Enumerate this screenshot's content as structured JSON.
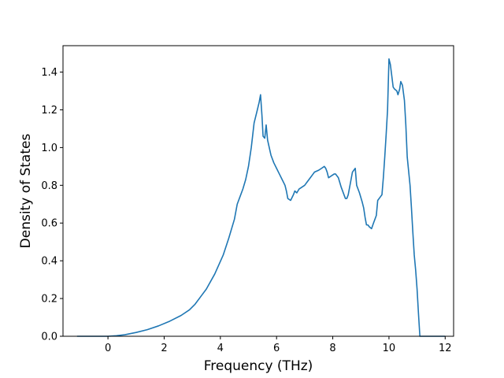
{
  "chart_data": {
    "type": "line",
    "title": "",
    "xlabel": "Frequency (THz)",
    "ylabel": "Density of States",
    "xlim": [
      -1.6,
      12.3
    ],
    "ylim": [
      0.0,
      1.54
    ],
    "x_ticks": [
      0,
      2,
      4,
      6,
      8,
      10,
      12
    ],
    "y_ticks": [
      0.0,
      0.2,
      0.4,
      0.6,
      0.8,
      1.0,
      1.2,
      1.4
    ],
    "grid": false,
    "line_color": "#1f77b4",
    "series": [
      {
        "points": [
          [
            -1.1,
            0.0
          ],
          [
            -0.5,
            0.0
          ],
          [
            0.0,
            0.0
          ],
          [
            0.3,
            0.003
          ],
          [
            0.6,
            0.008
          ],
          [
            1.0,
            0.02
          ],
          [
            1.4,
            0.035
          ],
          [
            1.8,
            0.055
          ],
          [
            2.2,
            0.08
          ],
          [
            2.6,
            0.11
          ],
          [
            2.9,
            0.14
          ],
          [
            3.1,
            0.17
          ],
          [
            3.3,
            0.21
          ],
          [
            3.5,
            0.25
          ],
          [
            3.8,
            0.33
          ],
          [
            4.1,
            0.43
          ],
          [
            4.3,
            0.52
          ],
          [
            4.5,
            0.62
          ],
          [
            4.6,
            0.7
          ],
          [
            4.7,
            0.74
          ],
          [
            4.8,
            0.78
          ],
          [
            4.9,
            0.83
          ],
          [
            5.0,
            0.9
          ],
          [
            5.1,
            1.0
          ],
          [
            5.2,
            1.13
          ],
          [
            5.3,
            1.19
          ],
          [
            5.38,
            1.24
          ],
          [
            5.43,
            1.28
          ],
          [
            5.48,
            1.17
          ],
          [
            5.52,
            1.06
          ],
          [
            5.58,
            1.05
          ],
          [
            5.63,
            1.12
          ],
          [
            5.68,
            1.04
          ],
          [
            5.8,
            0.96
          ],
          [
            5.9,
            0.92
          ],
          [
            6.0,
            0.89
          ],
          [
            6.1,
            0.86
          ],
          [
            6.2,
            0.83
          ],
          [
            6.3,
            0.8
          ],
          [
            6.35,
            0.77
          ],
          [
            6.4,
            0.73
          ],
          [
            6.5,
            0.72
          ],
          [
            6.6,
            0.75
          ],
          [
            6.65,
            0.77
          ],
          [
            6.72,
            0.76
          ],
          [
            6.8,
            0.78
          ],
          [
            6.9,
            0.79
          ],
          [
            7.0,
            0.8
          ],
          [
            7.1,
            0.82
          ],
          [
            7.2,
            0.84
          ],
          [
            7.3,
            0.86
          ],
          [
            7.35,
            0.87
          ],
          [
            7.5,
            0.88
          ],
          [
            7.6,
            0.89
          ],
          [
            7.7,
            0.9
          ],
          [
            7.75,
            0.89
          ],
          [
            7.8,
            0.87
          ],
          [
            7.85,
            0.84
          ],
          [
            7.95,
            0.85
          ],
          [
            8.05,
            0.86
          ],
          [
            8.1,
            0.86
          ],
          [
            8.2,
            0.84
          ],
          [
            8.3,
            0.79
          ],
          [
            8.4,
            0.75
          ],
          [
            8.45,
            0.73
          ],
          [
            8.5,
            0.73
          ],
          [
            8.55,
            0.75
          ],
          [
            8.6,
            0.79
          ],
          [
            8.65,
            0.83
          ],
          [
            8.7,
            0.87
          ],
          [
            8.75,
            0.88
          ],
          [
            8.8,
            0.89
          ],
          [
            8.85,
            0.8
          ],
          [
            8.95,
            0.76
          ],
          [
            9.05,
            0.71
          ],
          [
            9.1,
            0.68
          ],
          [
            9.15,
            0.63
          ],
          [
            9.2,
            0.59
          ],
          [
            9.25,
            0.59
          ],
          [
            9.3,
            0.58
          ],
          [
            9.38,
            0.57
          ],
          [
            9.45,
            0.6
          ],
          [
            9.5,
            0.62
          ],
          [
            9.55,
            0.64
          ],
          [
            9.6,
            0.72
          ],
          [
            9.7,
            0.74
          ],
          [
            9.75,
            0.75
          ],
          [
            9.8,
            0.84
          ],
          [
            9.85,
            0.95
          ],
          [
            9.9,
            1.07
          ],
          [
            9.95,
            1.2
          ],
          [
            10.0,
            1.47
          ],
          [
            10.05,
            1.44
          ],
          [
            10.1,
            1.38
          ],
          [
            10.15,
            1.32
          ],
          [
            10.2,
            1.31
          ],
          [
            10.28,
            1.3
          ],
          [
            10.32,
            1.28
          ],
          [
            10.38,
            1.31
          ],
          [
            10.42,
            1.35
          ],
          [
            10.48,
            1.33
          ],
          [
            10.55,
            1.25
          ],
          [
            10.6,
            1.12
          ],
          [
            10.65,
            0.95
          ],
          [
            10.75,
            0.8
          ],
          [
            10.8,
            0.68
          ],
          [
            10.85,
            0.55
          ],
          [
            10.9,
            0.43
          ],
          [
            10.95,
            0.35
          ],
          [
            11.0,
            0.25
          ],
          [
            11.05,
            0.12
          ],
          [
            11.1,
            0.0
          ],
          [
            11.5,
            0.0
          ],
          [
            12.0,
            0.0
          ]
        ]
      }
    ]
  }
}
